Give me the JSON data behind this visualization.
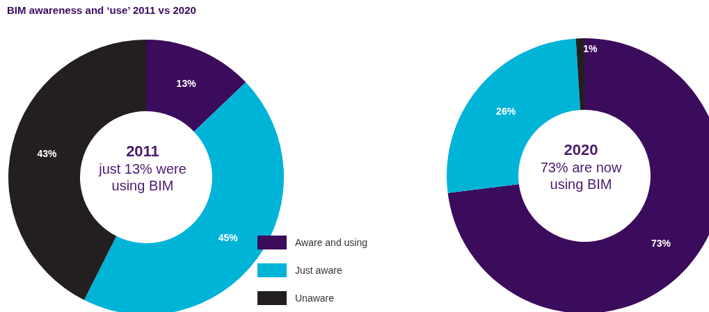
{
  "chart_data": [
    {
      "type": "donut",
      "title": "BIM awareness and ‘use’ 2011 vs 2020",
      "categories": [
        "Aware and using",
        "Just aware",
        "Unaware"
      ],
      "values": [
        13,
        45,
        43
      ],
      "colors": [
        "#3b0b5c",
        "#00b4d8",
        "#231f20"
      ],
      "value_labels": [
        "13%",
        "45%",
        "43%"
      ],
      "annotations": [
        "2011",
        "just 13% were using BIM"
      ],
      "legend": "bottom right"
    },
    {
      "type": "donut",
      "categories": [
        null,
        null,
        null
      ],
      "values": [
        73,
        26,
        1
      ],
      "colors": [
        "#3b0b5c",
        "#00b4d8",
        "#231f20"
      ],
      "value_labels": [
        "73%",
        "26%",
        "1%"
      ],
      "annotations": [
        "2020",
        "73% are now using BIM"
      ]
    }
  ]
}
